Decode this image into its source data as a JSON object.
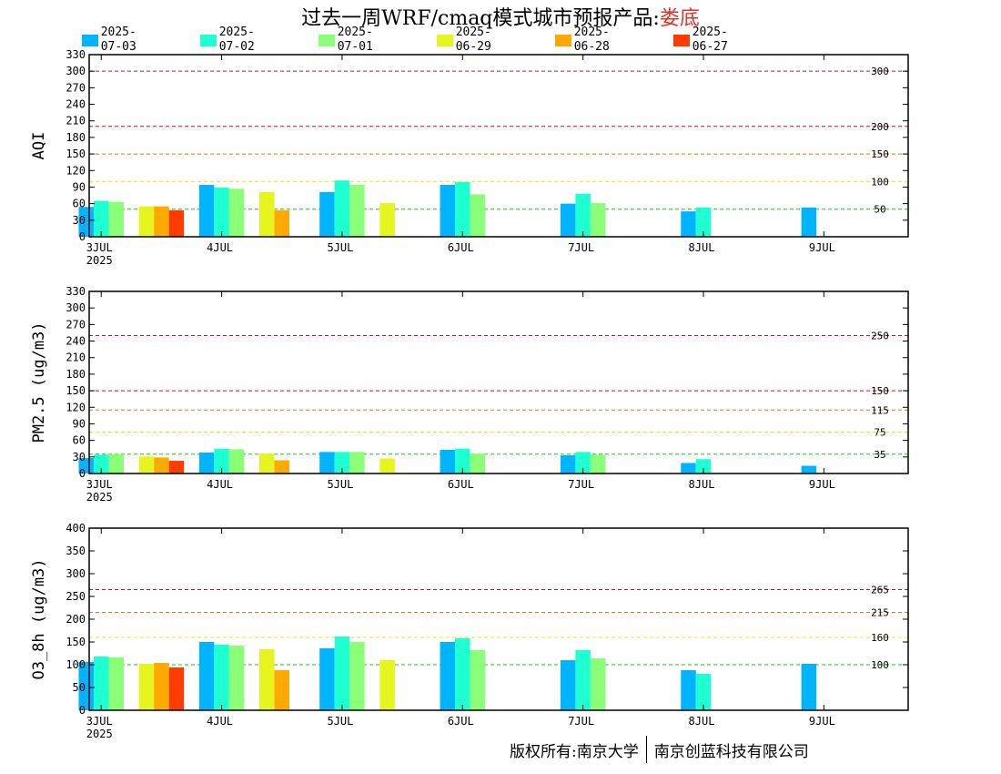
{
  "header": {
    "title_prefix": "过去一周WRF/cmaq模式城市预报产品:",
    "title_city": "娄底"
  },
  "footer": {
    "owner1": "版权所有:南京大学",
    "owner2": "南京创蓝科技有限公司"
  },
  "colors": {
    "2025-07-03": "#00b4ff",
    "2025-07-02": "#1effd2",
    "2025-07-01": "#8cff78",
    "2025-06-29": "#e6f51e",
    "2025-06-28": "#ffaa00",
    "2025-06-27": "#ff3c00"
  },
  "chart_data": [
    {
      "type": "bar",
      "ylabel": "AQI",
      "ylim": [
        0,
        330
      ],
      "yticks": [
        "0",
        "30",
        "60",
        "90",
        "120",
        "150",
        "180",
        "210",
        "240",
        "270",
        "300",
        "330"
      ],
      "xlim": [
        -0.1,
        6.7
      ],
      "xticks": [
        {
          "x": 0,
          "label": "3JUL",
          "sub": "2025"
        },
        {
          "x": 1,
          "label": "4JUL",
          "sub": ""
        },
        {
          "x": 2,
          "label": "5JUL",
          "sub": ""
        },
        {
          "x": 3,
          "label": "6JUL",
          "sub": ""
        },
        {
          "x": 4,
          "label": "7JUL",
          "sub": ""
        },
        {
          "x": 5,
          "label": "8JUL",
          "sub": ""
        },
        {
          "x": 6,
          "label": "9JUL",
          "sub": ""
        }
      ],
      "thresholds": [
        {
          "value": 300,
          "label": "300",
          "color": "#c01060"
        },
        {
          "value": 200,
          "label": "200",
          "color": "#d01010"
        },
        {
          "value": 150,
          "label": "150",
          "color": "#e07810"
        },
        {
          "value": 100,
          "label": "100",
          "color": "#f0e020"
        },
        {
          "value": 50,
          "label": "50",
          "color": "#20c020"
        }
      ],
      "series": [
        {
          "name": "2025-07-03",
          "x": [
            0,
            1,
            2,
            3,
            4,
            5,
            6
          ],
          "values": [
            54,
            94,
            81,
            94,
            60,
            46,
            53
          ]
        },
        {
          "name": "2025-07-02",
          "x": [
            0,
            1,
            2,
            3,
            4,
            5
          ],
          "values": [
            65,
            89,
            102,
            99,
            78,
            53
          ]
        },
        {
          "name": "2025-07-01",
          "x": [
            0,
            1,
            2,
            3,
            4
          ],
          "values": [
            63,
            87,
            94,
            77,
            61
          ]
        },
        {
          "name": "2025-06-29",
          "x": [
            0.5,
            1.5,
            2.5
          ],
          "values": [
            55,
            81,
            61
          ]
        },
        {
          "name": "2025-06-28",
          "x": [
            0.5,
            1.5
          ],
          "values": [
            55,
            48
          ]
        },
        {
          "name": "2025-06-27",
          "x": [
            0.5
          ],
          "values": [
            48
          ]
        }
      ]
    },
    {
      "type": "bar",
      "ylabel": "PM2.5 (ug/m3)",
      "ylim": [
        0,
        330
      ],
      "yticks": [
        "0",
        "30",
        "60",
        "90",
        "120",
        "150",
        "180",
        "210",
        "240",
        "270",
        "300",
        "330"
      ],
      "xlim": [
        -0.1,
        6.7
      ],
      "xticks": [
        {
          "x": 0,
          "label": "3JUL",
          "sub": "2025"
        },
        {
          "x": 1,
          "label": "4JUL",
          "sub": ""
        },
        {
          "x": 2,
          "label": "5JUL",
          "sub": ""
        },
        {
          "x": 3,
          "label": "6JUL",
          "sub": ""
        },
        {
          "x": 4,
          "label": "7JUL",
          "sub": ""
        },
        {
          "x": 5,
          "label": "8JUL",
          "sub": ""
        },
        {
          "x": 6,
          "label": "9JUL",
          "sub": ""
        }
      ],
      "thresholds": [
        {
          "value": 250,
          "label": "250",
          "color": "#c01060"
        },
        {
          "value": 150,
          "label": "150",
          "color": "#d01010"
        },
        {
          "value": 115,
          "label": "115",
          "color": "#e07810"
        },
        {
          "value": 75,
          "label": "75",
          "color": "#f0e020"
        },
        {
          "value": 35,
          "label": "35",
          "color": "#20c020"
        }
      ],
      "series": [
        {
          "name": "2025-07-03",
          "x": [
            0,
            1,
            2,
            3,
            4,
            5,
            6
          ],
          "values": [
            28,
            38,
            39,
            43,
            33,
            19,
            14
          ]
        },
        {
          "name": "2025-07-02",
          "x": [
            0,
            1,
            2,
            3,
            4,
            5
          ],
          "values": [
            34,
            45,
            39,
            45,
            39,
            26
          ]
        },
        {
          "name": "2025-07-01",
          "x": [
            0,
            1,
            2,
            3,
            4
          ],
          "values": [
            35,
            44,
            39,
            36,
            34
          ]
        },
        {
          "name": "2025-06-29",
          "x": [
            0.5,
            1.5,
            2.5
          ],
          "values": [
            31,
            36,
            27
          ]
        },
        {
          "name": "2025-06-28",
          "x": [
            0.5,
            1.5
          ],
          "values": [
            29,
            24
          ]
        },
        {
          "name": "2025-06-27",
          "x": [
            0.5
          ],
          "values": [
            23
          ]
        }
      ]
    },
    {
      "type": "bar",
      "ylabel": "O3_8h (ug/m3)",
      "ylim": [
        0,
        400
      ],
      "yticks": [
        "0",
        "50",
        "100",
        "150",
        "200",
        "250",
        "300",
        "350",
        "400"
      ],
      "xlim": [
        -0.1,
        6.7
      ],
      "xticks": [
        {
          "x": 0,
          "label": "3JUL",
          "sub": "2025"
        },
        {
          "x": 1,
          "label": "4JUL",
          "sub": ""
        },
        {
          "x": 2,
          "label": "5JUL",
          "sub": ""
        },
        {
          "x": 3,
          "label": "6JUL",
          "sub": ""
        },
        {
          "x": 4,
          "label": "7JUL",
          "sub": ""
        },
        {
          "x": 5,
          "label": "8JUL",
          "sub": ""
        },
        {
          "x": 6,
          "label": "9JUL",
          "sub": ""
        }
      ],
      "thresholds": [
        {
          "value": 265,
          "label": "265",
          "color": "#d01010"
        },
        {
          "value": 215,
          "label": "215",
          "color": "#e07810"
        },
        {
          "value": 160,
          "label": "160",
          "color": "#f0e020"
        },
        {
          "value": 100,
          "label": "100",
          "color": "#20c020"
        }
      ],
      "series": [
        {
          "name": "2025-07-03",
          "x": [
            0,
            1,
            2,
            3,
            4,
            5,
            6
          ],
          "values": [
            106,
            150,
            136,
            150,
            110,
            88,
            102
          ]
        },
        {
          "name": "2025-07-02",
          "x": [
            0,
            1,
            2,
            3,
            4,
            5
          ],
          "values": [
            118,
            144,
            162,
            158,
            132,
            80
          ]
        },
        {
          "name": "2025-07-01",
          "x": [
            0,
            1,
            2,
            3,
            4
          ],
          "values": [
            116,
            142,
            150,
            132,
            114
          ]
        },
        {
          "name": "2025-06-29",
          "x": [
            0.5,
            1.5,
            2.5
          ],
          "values": [
            102,
            134,
            110
          ]
        },
        {
          "name": "2025-06-28",
          "x": [
            0.5,
            1.5
          ],
          "values": [
            104,
            88
          ]
        },
        {
          "name": "2025-06-27",
          "x": [
            0.5
          ],
          "values": [
            94
          ]
        }
      ]
    }
  ],
  "legend": {
    "items": [
      "2025-07-03",
      "2025-07-02",
      "2025-07-01",
      "2025-06-29",
      "2025-06-28",
      "2025-06-27"
    ]
  }
}
